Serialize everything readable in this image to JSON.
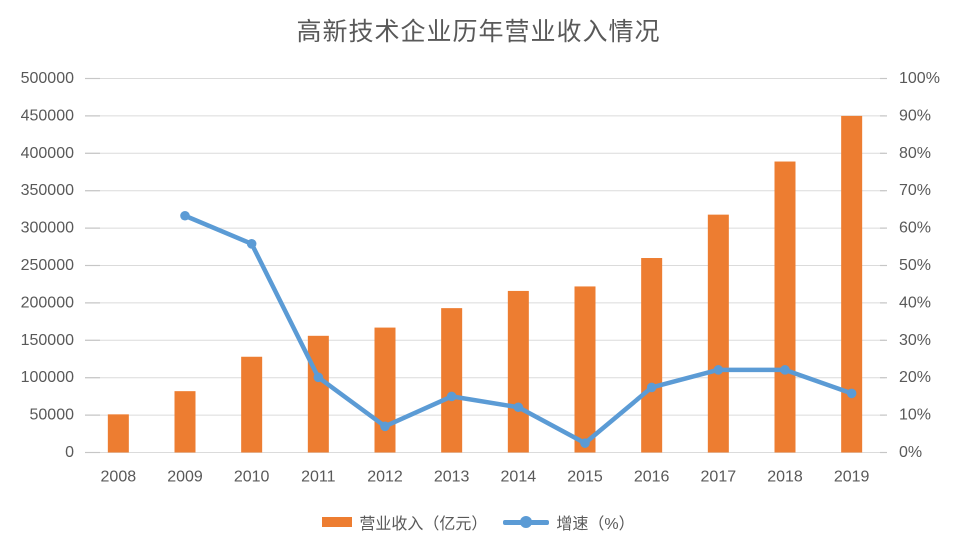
{
  "chart_data": {
    "type": "bar+line combo",
    "title": "高新技术企业历年营业收入情况",
    "categories": [
      "2008",
      "2009",
      "2010",
      "2011",
      "2012",
      "2013",
      "2014",
      "2015",
      "2016",
      "2017",
      "2018",
      "2019"
    ],
    "series": [
      {
        "name": "营业收入（亿元）",
        "type": "bar",
        "axis": "left",
        "color": "#ED7D31",
        "values": [
          51000,
          82000,
          128000,
          156000,
          167000,
          193000,
          216000,
          222000,
          260000,
          318000,
          389000,
          450000
        ]
      },
      {
        "name": "增速（%）",
        "type": "line",
        "axis": "right",
        "color": "#5B9BD5",
        "values": [
          null,
          63.3,
          55.8,
          20.1,
          7.0,
          15.0,
          12.1,
          2.5,
          17.4,
          22.1,
          22.1,
          15.8
        ]
      }
    ],
    "left_axis": {
      "min": 0,
      "max": 500000,
      "step": 50000,
      "tick_labels": [
        "0",
        "50000",
        "100000",
        "150000",
        "200000",
        "250000",
        "300000",
        "350000",
        "400000",
        "450000",
        "500000"
      ]
    },
    "right_axis": {
      "min": 0,
      "max": 100,
      "step": 10,
      "tick_labels": [
        "0%",
        "10%",
        "20%",
        "30%",
        "40%",
        "50%",
        "60%",
        "70%",
        "80%",
        "90%",
        "100%"
      ]
    },
    "grid": "on",
    "grid_color": "#DBDBDB",
    "tick_color": "#C6C6C6",
    "text_color": "#595959",
    "legend_position": "bottom"
  }
}
